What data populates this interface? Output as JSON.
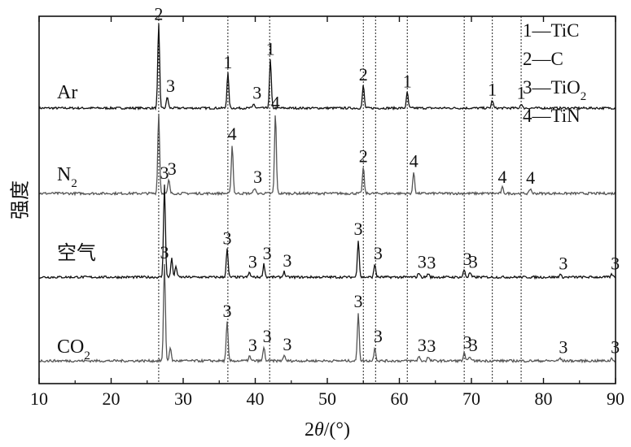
{
  "chart_data": {
    "type": "line",
    "xlabel_prefix": "2",
    "xlabel_theta": "θ",
    "xlabel_suffix": "/(°)",
    "ylabel": "强度",
    "xlim": [
      10,
      90
    ],
    "xticks": [
      10,
      20,
      30,
      40,
      50,
      60,
      70,
      80,
      90
    ],
    "grid": false,
    "ref_lines": [
      26.6,
      36.2,
      42.0,
      55.0,
      56.7,
      61.1,
      69.0,
      72.9,
      76.9
    ],
    "legend": [
      {
        "num": "1",
        "phase": "TiC"
      },
      {
        "num": "2",
        "phase": "C"
      },
      {
        "num": "3",
        "phase": "TiO",
        "sub": "2"
      },
      {
        "num": "4",
        "phase": "TiN"
      }
    ],
    "series": [
      {
        "name": "Ar",
        "name_sub": "",
        "color": "#111111",
        "peaks": [
          {
            "x": 26.6,
            "h": 0.95,
            "label": "2"
          },
          {
            "x": 27.8,
            "h": 0.13,
            "label": "3"
          },
          {
            "x": 36.2,
            "h": 0.4,
            "label": "1"
          },
          {
            "x": 39.8,
            "h": 0.05,
            "label": "3"
          },
          {
            "x": 42.1,
            "h": 0.55,
            "label": "1"
          },
          {
            "x": 55.0,
            "h": 0.26,
            "label": "2"
          },
          {
            "x": 61.1,
            "h": 0.18,
            "label": "1"
          },
          {
            "x": 72.9,
            "h": 0.09,
            "label": "1"
          },
          {
            "x": 76.9,
            "h": 0.05,
            "label": "1"
          }
        ]
      },
      {
        "name": "N",
        "name_sub": "2",
        "color": "#555555",
        "peaks": [
          {
            "x": 26.6,
            "h": 0.82,
            "label": ""
          },
          {
            "x": 28.0,
            "h": 0.14,
            "label": "3"
          },
          {
            "x": 36.8,
            "h": 0.5,
            "label": "4"
          },
          {
            "x": 39.9,
            "h": 0.06,
            "label": "3"
          },
          {
            "x": 42.8,
            "h": 0.82,
            "label": "4"
          },
          {
            "x": 55.0,
            "h": 0.27,
            "label": "2"
          },
          {
            "x": 62.0,
            "h": 0.22,
            "label": "4"
          },
          {
            "x": 74.3,
            "h": 0.06,
            "label": "4"
          },
          {
            "x": 78.2,
            "h": 0.05,
            "label": "4"
          }
        ]
      },
      {
        "name": "空气",
        "name_sub": "",
        "color": "#111111",
        "peaks": [
          {
            "x": 27.4,
            "h": 1.0,
            "label": "3"
          },
          {
            "x": 28.4,
            "h": 0.2,
            "label": ""
          },
          {
            "x": 29.0,
            "h": 0.12,
            "label": ""
          },
          {
            "x": 36.1,
            "h": 0.3,
            "label": "3"
          },
          {
            "x": 39.2,
            "h": 0.05,
            "label": "3"
          },
          {
            "x": 41.2,
            "h": 0.14,
            "label": "3"
          },
          {
            "x": 44.0,
            "h": 0.06,
            "label": "3"
          },
          {
            "x": 54.3,
            "h": 0.4,
            "label": "3"
          },
          {
            "x": 56.6,
            "h": 0.14,
            "label": "3"
          },
          {
            "x": 62.7,
            "h": 0.05,
            "label": "3"
          },
          {
            "x": 64.0,
            "h": 0.04,
            "label": "3"
          },
          {
            "x": 69.0,
            "h": 0.08,
            "label": "3"
          },
          {
            "x": 69.8,
            "h": 0.05,
            "label": "3"
          },
          {
            "x": 82.3,
            "h": 0.03,
            "label": "3"
          },
          {
            "x": 89.5,
            "h": 0.03,
            "label": "3"
          }
        ]
      },
      {
        "name": "CO",
        "name_sub": "2",
        "color": "#555555",
        "peaks": [
          {
            "x": 27.4,
            "h": 1.0,
            "label": "3"
          },
          {
            "x": 28.2,
            "h": 0.14,
            "label": ""
          },
          {
            "x": 36.1,
            "h": 0.4,
            "label": "3"
          },
          {
            "x": 39.2,
            "h": 0.05,
            "label": "3"
          },
          {
            "x": 41.2,
            "h": 0.14,
            "label": "3"
          },
          {
            "x": 44.0,
            "h": 0.06,
            "label": "3"
          },
          {
            "x": 54.3,
            "h": 0.5,
            "label": "3"
          },
          {
            "x": 56.6,
            "h": 0.14,
            "label": "3"
          },
          {
            "x": 62.7,
            "h": 0.05,
            "label": "3"
          },
          {
            "x": 64.0,
            "h": 0.04,
            "label": "3"
          },
          {
            "x": 69.0,
            "h": 0.08,
            "label": "3"
          },
          {
            "x": 69.8,
            "h": 0.05,
            "label": "3"
          },
          {
            "x": 82.3,
            "h": 0.03,
            "label": "3"
          },
          {
            "x": 89.5,
            "h": 0.03,
            "label": "3"
          }
        ]
      }
    ]
  }
}
